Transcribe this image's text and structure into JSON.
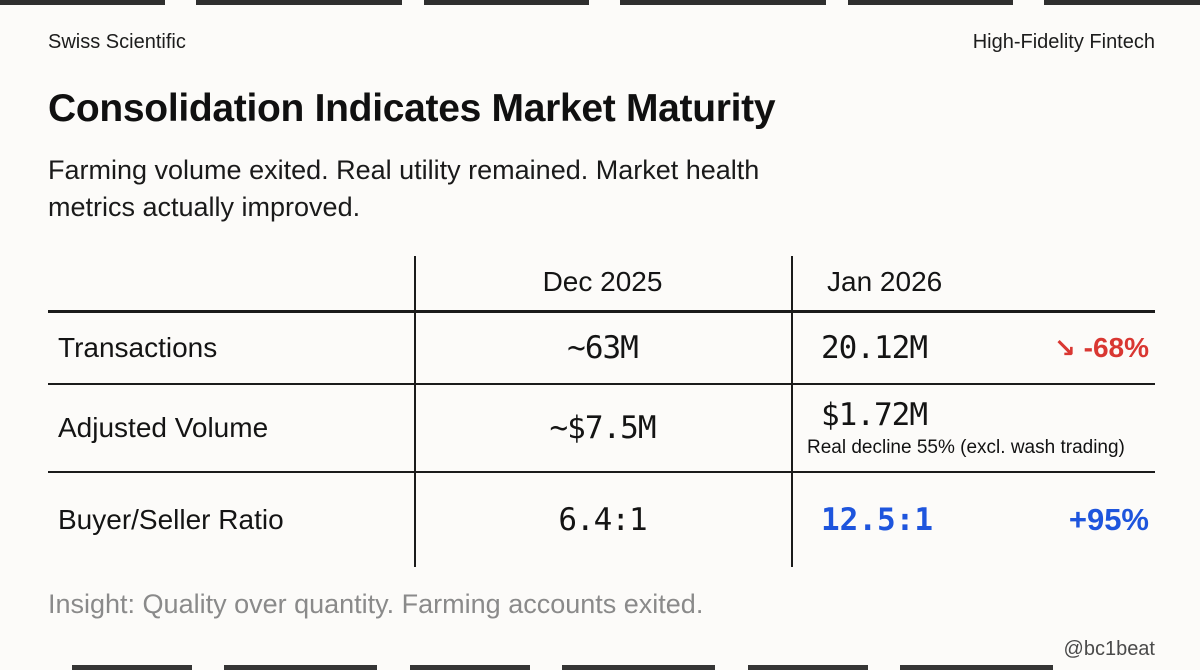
{
  "header": {
    "left": "Swiss Scientific",
    "right": "High-Fidelity Fintech"
  },
  "title": "Consolidation Indicates Market Maturity",
  "subtitle": "Farming volume exited. Real utility remained. Market health\nmetrics actually improved.",
  "table": {
    "columns": [
      "",
      "Dec 2025",
      "Jan 2026"
    ],
    "rows": [
      {
        "label": "Transactions",
        "dec": "~63M",
        "jan": "20.12M",
        "change_arrow": "↘",
        "change": "-68%",
        "change_color": "#d93732"
      },
      {
        "label": "Adjusted Volume",
        "dec": "~$7.5M",
        "jan": "$1.72M",
        "note": "Real decline 55% (excl. wash trading)"
      },
      {
        "label": "Buyer/Seller Ratio",
        "dec": "6.4:1",
        "jan": "12.5:1",
        "change": "+95%",
        "highlight_color": "#1e55dd"
      }
    ]
  },
  "insight": "Insight: Quality over quantity. Farming accounts exited.",
  "watermark": "@bc1beat",
  "colors": {
    "background": "#fcfbf9",
    "text": "#141414",
    "negative_red": "#d93732",
    "positive_blue": "#1e55dd",
    "muted_gray": "#8a8a8a",
    "line": "#1b1b1b"
  }
}
